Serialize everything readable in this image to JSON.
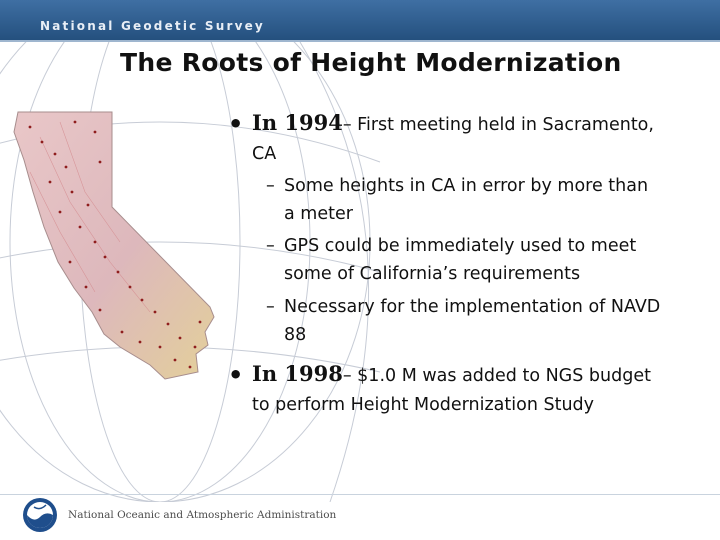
{
  "header": {
    "org_name": "National Geodetic Survey"
  },
  "slide": {
    "title": "The Roots of Height Modernization",
    "bullet_1": {
      "lead": "In 1994",
      "text_line_1": "– First meeting held in Sacramento,",
      "text_line_2": "CA",
      "subitems": [
        {
          "line_1": "Some heights in CA in error by more than",
          "line_2": "a meter"
        },
        {
          "line_1": "GPS could be immediately used to meet",
          "line_2": "some of California’s requirements"
        },
        {
          "line_1": "Necessary for the implementation of NAVD",
          "line_2": "88"
        }
      ]
    },
    "bullet_2": {
      "lead": "In 1998",
      "text_line_1": "– $1.0 M was added to NGS budget",
      "text_line_2": "to perform Height Modernization Study"
    }
  },
  "footer": {
    "agency_name": "National Oceanic and Atmospheric Administration"
  },
  "colors": {
    "header_blue": "#2f5e91",
    "map_dots": "#9b1c1c"
  }
}
